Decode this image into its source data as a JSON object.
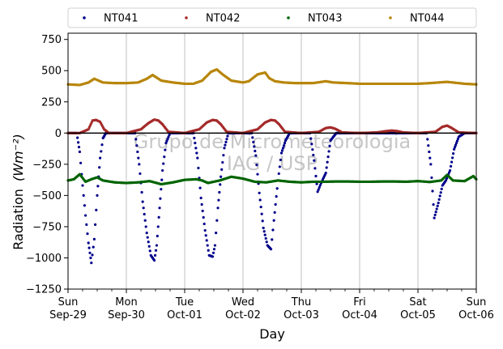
{
  "chart_data": {
    "type": "scatter",
    "ylabel": "Radiation",
    "ylabel_unit": "(Wm⁻²)",
    "xlabel": "Day",
    "ylim": [
      -1250,
      800
    ],
    "yticks": [
      -1250,
      -1000,
      -750,
      -500,
      -250,
      0,
      250,
      500,
      750
    ],
    "xlim": [
      0,
      7
    ],
    "xticks": [
      {
        "x": 0,
        "line1": "Sun",
        "line2": "Sep-29"
      },
      {
        "x": 1,
        "line1": "Mon",
        "line2": "Sep-30"
      },
      {
        "x": 2,
        "line1": "Tue",
        "line2": "Oct-01"
      },
      {
        "x": 3,
        "line1": "Wed",
        "line2": "Oct-02"
      },
      {
        "x": 4,
        "line1": "Thu",
        "line2": "Oct-03"
      },
      {
        "x": 5,
        "line1": "Fri",
        "line2": "Oct-04"
      },
      {
        "x": 6,
        "line1": "Sat",
        "line2": "Oct-05"
      },
      {
        "x": 7,
        "line1": "Sun",
        "line2": "Oct-06"
      }
    ],
    "grid": "vertical",
    "legend_position": "top",
    "watermark_line1": "Grupo de Micrometeorologia",
    "watermark_line2": "IAG / USP",
    "series": [
      {
        "name": "NT041",
        "color": "#00008b",
        "x": [
          0.0,
          0.15,
          0.2,
          0.25,
          0.3,
          0.35,
          0.4,
          0.45,
          0.5,
          0.55,
          0.6,
          0.65,
          0.72,
          0.8,
          0.9,
          1.0,
          1.15,
          1.22,
          1.28,
          1.35,
          1.42,
          1.48,
          1.52,
          1.57,
          1.62,
          1.68,
          1.75,
          1.82,
          1.9,
          2.0,
          2.15,
          2.22,
          2.28,
          2.35,
          2.42,
          2.48,
          2.52,
          2.57,
          2.62,
          2.68,
          2.75,
          2.82,
          2.9,
          3.0,
          3.15,
          3.22,
          3.28,
          3.35,
          3.42,
          3.48,
          3.53,
          3.6,
          3.66,
          3.73,
          3.8,
          3.9,
          4.0,
          4.15,
          4.22,
          4.28,
          4.34,
          4.42,
          4.5,
          4.6,
          4.75,
          4.9,
          5.0,
          5.2,
          5.4,
          5.6,
          5.8,
          6.0,
          6.15,
          6.22,
          6.28,
          6.35,
          6.42,
          6.48,
          6.55,
          6.62,
          6.7,
          6.8,
          6.9,
          7.0
        ],
        "y": [
          0,
          0,
          -150,
          -420,
          -660,
          -880,
          -1040,
          -850,
          -500,
          -200,
          -40,
          0,
          0,
          0,
          0,
          0,
          0,
          -250,
          -550,
          -800,
          -980,
          -1020,
          -900,
          -600,
          -300,
          -80,
          0,
          0,
          0,
          0,
          0,
          -200,
          -520,
          -780,
          -980,
          -990,
          -900,
          -600,
          -350,
          -120,
          0,
          0,
          0,
          0,
          0,
          -180,
          -480,
          -760,
          -900,
          -930,
          -700,
          -380,
          -160,
          -60,
          0,
          0,
          0,
          0,
          -220,
          -470,
          -400,
          -320,
          -60,
          0,
          0,
          0,
          0,
          0,
          0,
          0,
          0,
          0,
          0,
          -250,
          -680,
          -560,
          -420,
          -380,
          -300,
          -130,
          -30,
          0,
          0,
          0
        ]
      },
      {
        "name": "NT042",
        "color": "#a52a2a",
        "x": [
          0.0,
          0.2,
          0.35,
          0.42,
          0.48,
          0.55,
          0.62,
          0.7,
          1.0,
          1.25,
          1.38,
          1.48,
          1.55,
          1.62,
          1.72,
          2.0,
          2.25,
          2.38,
          2.48,
          2.55,
          2.62,
          2.72,
          3.0,
          3.25,
          3.38,
          3.48,
          3.55,
          3.62,
          3.72,
          4.0,
          4.3,
          4.42,
          4.5,
          4.58,
          4.7,
          5.0,
          5.3,
          5.45,
          5.55,
          5.65,
          5.75,
          6.0,
          6.3,
          6.42,
          6.5,
          6.58,
          6.7,
          7.0
        ],
        "y": [
          0,
          0,
          30,
          100,
          105,
          90,
          30,
          0,
          0,
          30,
          80,
          108,
          100,
          70,
          10,
          0,
          30,
          85,
          105,
          100,
          70,
          10,
          0,
          30,
          85,
          105,
          100,
          70,
          10,
          0,
          10,
          40,
          45,
          35,
          5,
          0,
          5,
          15,
          20,
          15,
          5,
          0,
          10,
          50,
          60,
          40,
          5,
          0
        ]
      },
      {
        "name": "NT043",
        "color": "#006400",
        "x": [
          0.0,
          0.1,
          0.2,
          0.3,
          0.4,
          0.5,
          0.6,
          0.8,
          1.0,
          1.2,
          1.4,
          1.6,
          1.8,
          2.0,
          2.2,
          2.3,
          2.4,
          2.6,
          2.8,
          3.0,
          3.2,
          3.4,
          3.6,
          3.8,
          4.0,
          4.2,
          4.4,
          4.6,
          4.8,
          5.0,
          5.2,
          5.4,
          5.6,
          5.8,
          6.0,
          6.2,
          6.4,
          6.5,
          6.6,
          6.8,
          6.95,
          7.0
        ],
        "y": [
          -380,
          -370,
          -330,
          -390,
          -370,
          -355,
          -380,
          -395,
          -400,
          -395,
          -385,
          -410,
          -395,
          -375,
          -370,
          -380,
          -400,
          -380,
          -350,
          -365,
          -390,
          -395,
          -380,
          -390,
          -395,
          -390,
          -390,
          -388,
          -388,
          -390,
          -390,
          -388,
          -388,
          -390,
          -385,
          -392,
          -380,
          -335,
          -380,
          -385,
          -345,
          -370
        ]
      },
      {
        "name": "NT044",
        "color": "#b8860b",
        "x": [
          0.0,
          0.2,
          0.35,
          0.45,
          0.5,
          0.6,
          0.8,
          1.0,
          1.2,
          1.35,
          1.45,
          1.5,
          1.6,
          1.8,
          2.0,
          2.15,
          2.3,
          2.45,
          2.55,
          2.65,
          2.8,
          3.0,
          3.1,
          3.25,
          3.38,
          3.45,
          3.55,
          3.7,
          3.9,
          4.0,
          4.2,
          4.42,
          4.55,
          4.8,
          5.0,
          5.2,
          5.4,
          5.6,
          5.8,
          6.0,
          6.2,
          6.35,
          6.5,
          6.6,
          6.7,
          6.8,
          7.0
        ],
        "y": [
          390,
          385,
          405,
          435,
          425,
          405,
          400,
          400,
          405,
          435,
          465,
          450,
          420,
          405,
          395,
          395,
          420,
          490,
          510,
          470,
          420,
          405,
          415,
          470,
          485,
          440,
          415,
          405,
          400,
          400,
          400,
          415,
          405,
          400,
          395,
          395,
          395,
          395,
          395,
          395,
          400,
          405,
          410,
          405,
          400,
          395,
          390
        ]
      }
    ]
  }
}
